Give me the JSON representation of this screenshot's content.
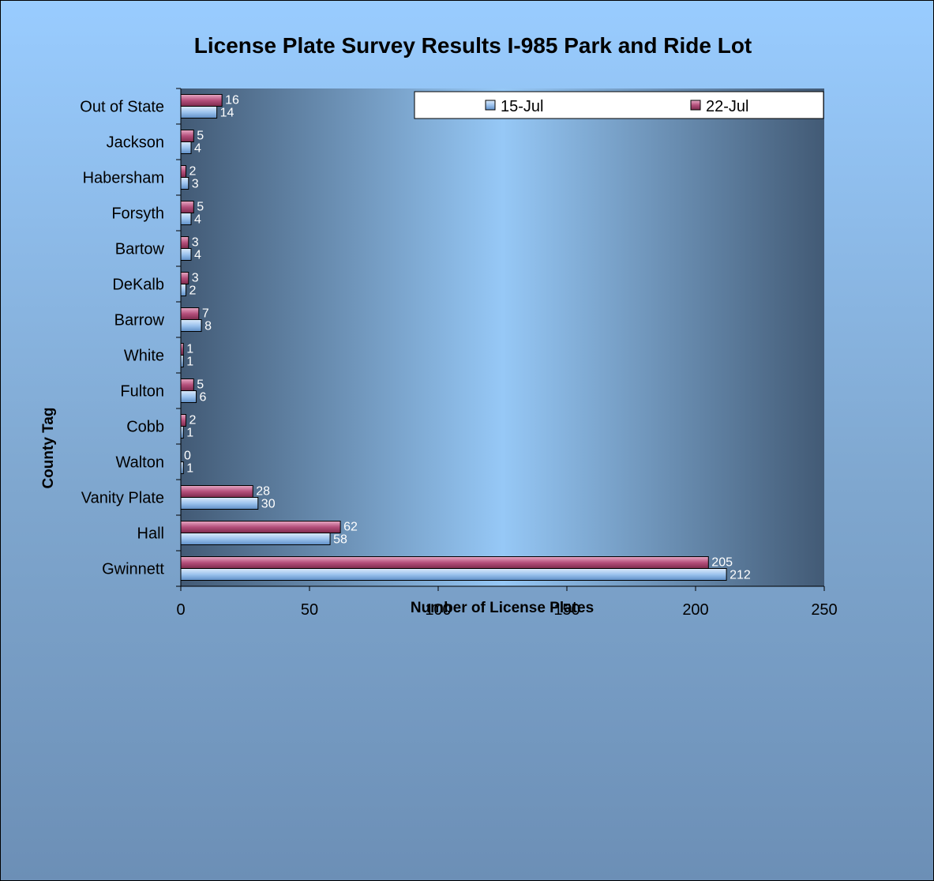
{
  "colors": {
    "series_15jul": "#9dc3ee",
    "series_22jul": "#b5507c",
    "plot_edge": "#425a75",
    "plot_center": "#96c8f6"
  },
  "chart_data": {
    "type": "bar",
    "orientation": "horizontal",
    "title": "License Plate Survey Results I-985 Park and Ride Lot",
    "xlabel": "Number of License Plates",
    "ylabel": "County Tag",
    "xlim": [
      0,
      250
    ],
    "xticks": [
      "0",
      "50",
      "100",
      "150",
      "200",
      "250"
    ],
    "grid": false,
    "legend_position": "top-right",
    "categories": [
      "Out of State",
      "Jackson",
      "Habersham",
      "Forsyth",
      "Bartow",
      "DeKalb",
      "Barrow",
      "White",
      "Fulton",
      "Cobb",
      "Walton",
      "Vanity Plate",
      "Hall",
      "Gwinnett"
    ],
    "series": [
      {
        "name": "15-Jul",
        "values": [
          14,
          4,
          3,
          4,
          4,
          2,
          8,
          1,
          6,
          1,
          1,
          30,
          58,
          212
        ]
      },
      {
        "name": "22-Jul",
        "values": [
          16,
          5,
          2,
          5,
          3,
          3,
          7,
          1,
          5,
          2,
          0,
          28,
          62,
          205
        ]
      }
    ]
  }
}
